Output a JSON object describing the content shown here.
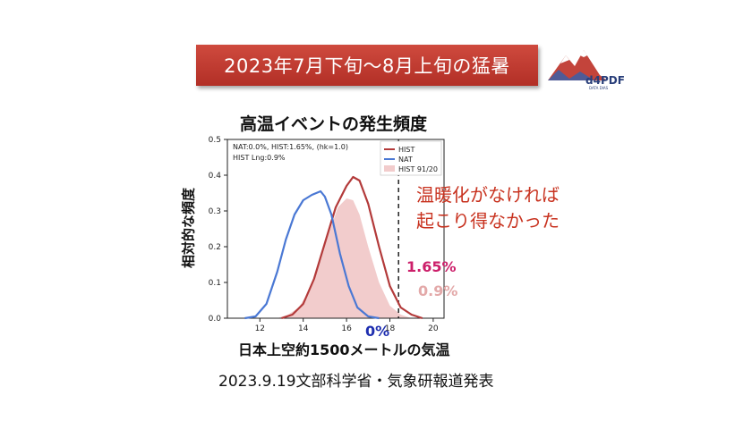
{
  "banner": {
    "title": "2023年7月下旬〜8月上旬の猛暑"
  },
  "logo": {
    "text": "d4PDF",
    "subtext": "DATA DIAS"
  },
  "annotation": {
    "line1": "温暖化がなければ",
    "line2": "起こり得なかった"
  },
  "percent_labels": {
    "hist": "1.65%",
    "hist_lng": "0.9%",
    "nat": "0%"
  },
  "source": "2023.9.19文部科学省・気象研報道発表",
  "colors": {
    "hist": "#b33a3a",
    "nat": "#4a78d4",
    "hist_lng_fill": "#f2cccc",
    "banner": "#c0392b"
  },
  "chart_data": {
    "type": "line",
    "title": "高温イベントの発生頻度",
    "xlabel": "日本上空約1500メートルの気温",
    "ylabel": "相対的な頻度",
    "xlim": [
      10.5,
      20.5
    ],
    "ylim": [
      0.0,
      0.5
    ],
    "xticks": [
      12,
      14,
      16,
      18,
      20
    ],
    "yticks": [
      0.0,
      0.1,
      0.2,
      0.3,
      0.4,
      0.5
    ],
    "info_text": [
      "NAT:0.0%, HIST:1.65%, (hk=1.0)",
      "HIST Lng:0.9%"
    ],
    "threshold_x": 18.4,
    "legend_position": "top-right",
    "series": [
      {
        "name": "HIST",
        "style": "line",
        "x": [
          13.0,
          13.5,
          14.0,
          14.5,
          15.0,
          15.5,
          16.0,
          16.3,
          16.6,
          17.0,
          17.5,
          18.0,
          18.5,
          19.0,
          19.5
        ],
        "y": [
          0.0,
          0.01,
          0.04,
          0.11,
          0.21,
          0.31,
          0.37,
          0.395,
          0.385,
          0.32,
          0.2,
          0.09,
          0.03,
          0.01,
          0.0
        ]
      },
      {
        "name": "NAT",
        "style": "line",
        "x": [
          11.3,
          11.8,
          12.3,
          12.8,
          13.2,
          13.6,
          14.0,
          14.4,
          14.8,
          15.0,
          15.3,
          15.7,
          16.1,
          16.5,
          17.0,
          17.5
        ],
        "y": [
          0.0,
          0.005,
          0.04,
          0.13,
          0.22,
          0.29,
          0.33,
          0.345,
          0.355,
          0.34,
          0.29,
          0.18,
          0.09,
          0.03,
          0.005,
          0.0
        ]
      },
      {
        "name": "HIST 91/20",
        "style": "area",
        "x": [
          12.8,
          13.3,
          13.8,
          14.3,
          14.8,
          15.2,
          15.6,
          16.0,
          16.3,
          16.6,
          17.0,
          17.5,
          18.0,
          18.5,
          19.0
        ],
        "y": [
          0.0,
          0.01,
          0.03,
          0.08,
          0.16,
          0.24,
          0.31,
          0.335,
          0.33,
          0.29,
          0.2,
          0.1,
          0.035,
          0.01,
          0.0
        ]
      }
    ]
  }
}
